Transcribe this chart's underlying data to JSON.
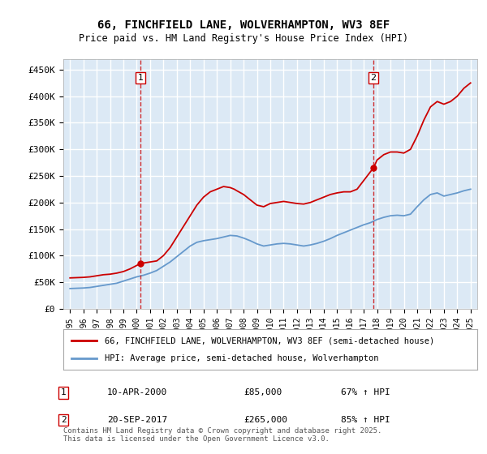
{
  "title": "66, FINCHFIELD LANE, WOLVERHAMPTON, WV3 8EF",
  "subtitle": "Price paid vs. HM Land Registry's House Price Index (HPI)",
  "background_color": "#dce9f5",
  "plot_bg_color": "#dce9f5",
  "figure_bg_color": "#ffffff",
  "red_line_color": "#cc0000",
  "blue_line_color": "#6699cc",
  "grid_color": "#ffffff",
  "ylim": [
    0,
    470000
  ],
  "yticks": [
    0,
    50000,
    100000,
    150000,
    200000,
    250000,
    300000,
    350000,
    400000,
    450000
  ],
  "ytick_labels": [
    "£0",
    "£50K",
    "£100K",
    "£150K",
    "£200K",
    "£250K",
    "£300K",
    "£350K",
    "£400K",
    "£450K"
  ],
  "xlim_start": 1994.5,
  "xlim_end": 2025.5,
  "xlabel": "",
  "transaction1_x": 2000.27,
  "transaction1_y": 85000,
  "transaction2_x": 2017.72,
  "transaction2_y": 265000,
  "legend_label_red": "66, FINCHFIELD LANE, WOLVERHAMPTON, WV3 8EF (semi-detached house)",
  "legend_label_blue": "HPI: Average price, semi-detached house, Wolverhampton",
  "annotation1_date": "10-APR-2000",
  "annotation1_price": "£85,000",
  "annotation1_hpi": "67% ↑ HPI",
  "annotation2_date": "20-SEP-2017",
  "annotation2_price": "£265,000",
  "annotation2_hpi": "85% ↑ HPI",
  "footer_text": "Contains HM Land Registry data © Crown copyright and database right 2025.\nThis data is licensed under the Open Government Licence v3.0.",
  "red_x": [
    1995,
    1995.5,
    1996,
    1996.5,
    1997,
    1997.5,
    1998,
    1998.5,
    1999,
    1999.5,
    2000.27,
    2000.5,
    2001,
    2001.5,
    2002,
    2002.5,
    2003,
    2003.5,
    2004,
    2004.5,
    2005,
    2005.5,
    2006,
    2006.5,
    2007,
    2007.3,
    2007.5,
    2008,
    2008.5,
    2009,
    2009.5,
    2010,
    2010.5,
    2011,
    2011.5,
    2012,
    2012.5,
    2013,
    2013.5,
    2014,
    2014.5,
    2015,
    2015.5,
    2016,
    2016.5,
    2017.72,
    2018,
    2018.5,
    2019,
    2019.5,
    2020,
    2020.5,
    2021,
    2021.5,
    2022,
    2022.5,
    2023,
    2023.5,
    2024,
    2024.5,
    2025
  ],
  "red_y": [
    58000,
    58500,
    59000,
    60000,
    62000,
    64000,
    65000,
    67000,
    70000,
    75000,
    85000,
    86000,
    88000,
    90000,
    100000,
    115000,
    135000,
    155000,
    175000,
    195000,
    210000,
    220000,
    225000,
    230000,
    228000,
    225000,
    222000,
    215000,
    205000,
    195000,
    192000,
    198000,
    200000,
    202000,
    200000,
    198000,
    197000,
    200000,
    205000,
    210000,
    215000,
    218000,
    220000,
    220000,
    225000,
    265000,
    280000,
    290000,
    295000,
    295000,
    293000,
    300000,
    325000,
    355000,
    380000,
    390000,
    385000,
    390000,
    400000,
    415000,
    425000
  ],
  "blue_x": [
    1995,
    1995.5,
    1996,
    1996.5,
    1997,
    1997.5,
    1998,
    1998.5,
    1999,
    1999.5,
    2000,
    2000.5,
    2001,
    2001.5,
    2002,
    2002.5,
    2003,
    2003.5,
    2004,
    2004.5,
    2005,
    2005.5,
    2006,
    2006.5,
    2007,
    2007.5,
    2008,
    2008.5,
    2009,
    2009.5,
    2010,
    2010.5,
    2011,
    2011.5,
    2012,
    2012.5,
    2013,
    2013.5,
    2014,
    2014.5,
    2015,
    2015.5,
    2016,
    2016.5,
    2017,
    2017.5,
    2018,
    2018.5,
    2019,
    2019.5,
    2020,
    2020.5,
    2021,
    2021.5,
    2022,
    2022.5,
    2023,
    2023.5,
    2024,
    2024.5,
    2025
  ],
  "blue_y": [
    38000,
    38500,
    39000,
    40000,
    42000,
    44000,
    46000,
    48000,
    52000,
    56000,
    60000,
    63000,
    67000,
    72000,
    80000,
    88000,
    98000,
    108000,
    118000,
    125000,
    128000,
    130000,
    132000,
    135000,
    138000,
    137000,
    133000,
    128000,
    122000,
    118000,
    120000,
    122000,
    123000,
    122000,
    120000,
    118000,
    120000,
    123000,
    127000,
    132000,
    138000,
    143000,
    148000,
    153000,
    158000,
    162000,
    168000,
    172000,
    175000,
    176000,
    175000,
    178000,
    192000,
    205000,
    215000,
    218000,
    212000,
    215000,
    218000,
    222000,
    225000
  ]
}
